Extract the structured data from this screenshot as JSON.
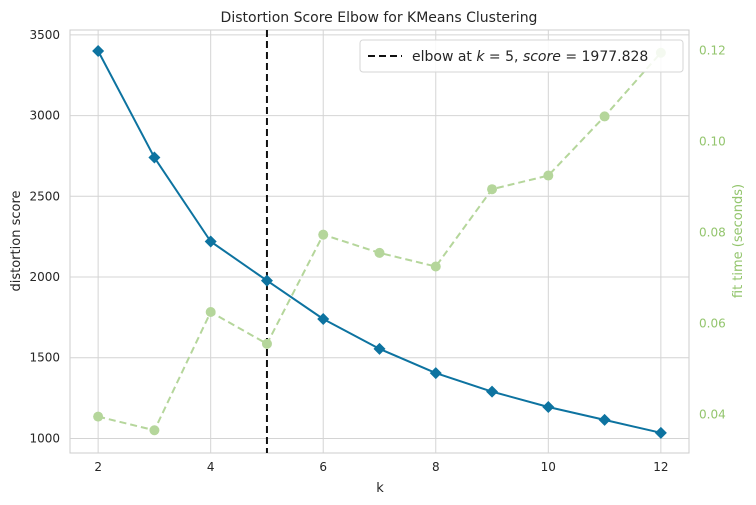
{
  "chart_data": {
    "type": "line",
    "title": "Distortion Score Elbow for KMeans Clustering",
    "xlabel": "k",
    "ylabel": "distortion score",
    "y2label": "fit time (seconds)",
    "xlim": [
      1.5,
      12.5
    ],
    "ylim": [
      910,
      3530
    ],
    "y2lim": [
      0.0315,
      0.1245
    ],
    "x_ticks": [
      2,
      4,
      6,
      8,
      10,
      12
    ],
    "y_ticks": [
      1000,
      1500,
      2000,
      2500,
      3000,
      3500
    ],
    "y2_ticks": [
      0.04,
      0.06,
      0.08,
      0.1,
      0.12
    ],
    "y2_tick_labels": [
      "0.04",
      "0.06",
      "0.08",
      "0.10",
      "0.12"
    ],
    "grid": true,
    "legend_position": "top-right",
    "x": [
      2,
      3,
      4,
      5,
      6,
      7,
      8,
      9,
      10,
      11,
      12
    ],
    "series": [
      {
        "axis": "left",
        "color": "#0d73a0",
        "marker": "diamond",
        "line": "solid",
        "values": [
          3400,
          2740,
          2220,
          1977.828,
          1740,
          1555,
          1405,
          1290,
          1195,
          1115,
          1035
        ]
      },
      {
        "axis": "right",
        "color": "#b5d69b",
        "marker": "circle",
        "line": "dashed",
        "values": [
          0.0395,
          0.0365,
          0.0625,
          0.0555,
          0.0795,
          0.0755,
          0.0725,
          0.0895,
          0.0925,
          0.1055,
          0.1195
        ]
      }
    ],
    "elbow": {
      "k": 5,
      "score": "1977.828",
      "color": "#111111",
      "legend_parts": [
        "elbow at ",
        "k",
        " = 5, ",
        "score",
        " = 1977.828"
      ]
    }
  }
}
